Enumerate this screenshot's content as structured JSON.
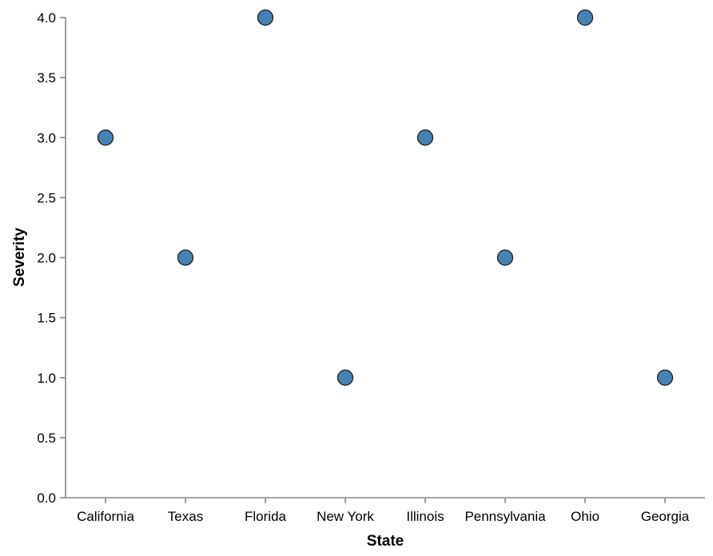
{
  "chart_data": {
    "type": "scatter",
    "categories": [
      "California",
      "Texas",
      "Florida",
      "New York",
      "Illinois",
      "Pennsylvania",
      "Ohio",
      "Georgia"
    ],
    "values": [
      3.0,
      2.0,
      4.0,
      1.0,
      3.0,
      2.0,
      4.0,
      1.0
    ],
    "xlabel": "State",
    "ylabel": "Severity",
    "ylim": [
      0,
      4
    ],
    "yticks": [
      "0.0",
      "0.5",
      "1.0",
      "1.5",
      "2.0",
      "2.5",
      "3.0",
      "3.5",
      "4.0"
    ],
    "grid": false,
    "legend": "none"
  },
  "colors": {
    "point_fill": "#4682b4",
    "point_stroke": "#1a1a1a",
    "axis": "#888888"
  }
}
